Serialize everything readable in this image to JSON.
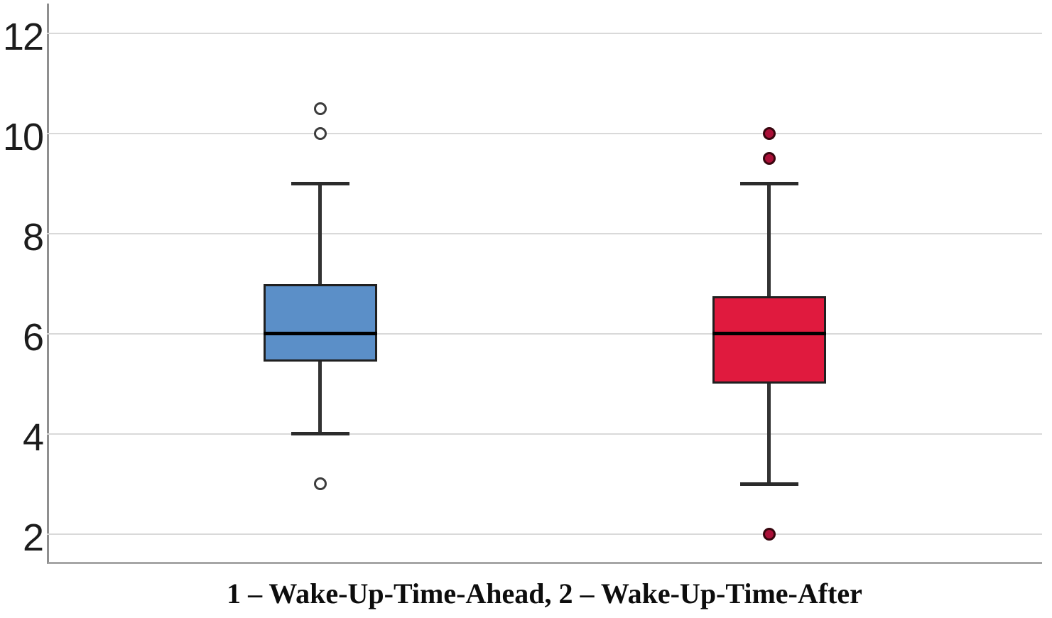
{
  "figure": {
    "caption": "1 – Wake-Up-Time-Ahead, 2 – Wake-Up-Time-After"
  },
  "chart_data": {
    "type": "boxplot",
    "title": "",
    "xlabel": "1 – Wake-Up-Time-Ahead, 2 – Wake-Up-Time-After",
    "ylabel": "",
    "ylim": [
      1.4,
      12.6
    ],
    "yticks": [
      2,
      4,
      6,
      8,
      10,
      12
    ],
    "grid": true,
    "legend": "none",
    "colors": {
      "gridline": "#d9d9d9",
      "y_axis_line": "#8f8f8f",
      "x_axis_line": "#a6a6a6",
      "box_border": "#202020",
      "median_line": "#000000",
      "whisker": "#333333",
      "tick_label": "#1c1c1c",
      "caption_text": "#0d0d0d"
    },
    "series": [
      {
        "name": "Wake-Up-Time-Ahead",
        "x_label": "1",
        "fill": "#5b8fc8",
        "marker": "open-circle",
        "outlier_fill": "#ffffff",
        "outlier_border": "#3c3c3c",
        "x_center_frac": 0.2748,
        "whisker_low": 4,
        "q1": 5.45,
        "median": 6,
        "q3": 7,
        "whisker_high": 9,
        "outliers": [
          10.5,
          10,
          3
        ]
      },
      {
        "name": "Wake-Up-Time-After",
        "x_label": "2",
        "fill": "#e01a3e",
        "marker": "filled-circle",
        "outlier_fill": "#aa1038",
        "outlier_border": "#38060f",
        "x_center_frac": 0.7259,
        "whisker_low": 3,
        "q1": 5,
        "median": 6,
        "q3": 6.75,
        "whisker_high": 9,
        "outliers": [
          10,
          9.5,
          2
        ]
      }
    ]
  }
}
